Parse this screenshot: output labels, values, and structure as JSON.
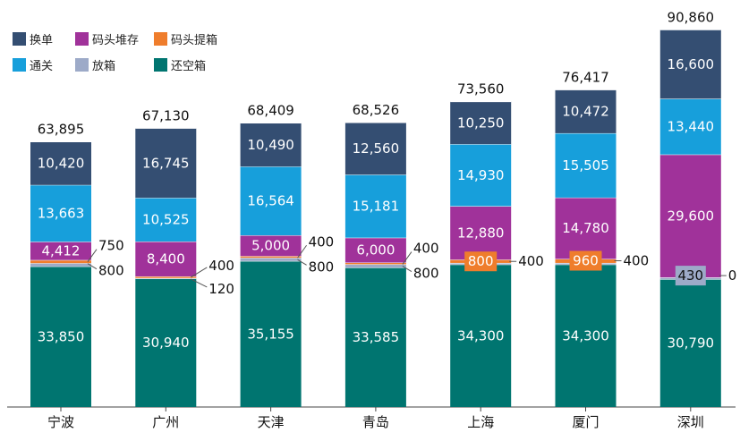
{
  "chart_data": {
    "type": "stacked-bar",
    "categories": [
      "宁波",
      "广州",
      "天津",
      "青岛",
      "上海",
      "厦门",
      "深圳"
    ],
    "series": [
      {
        "name": "还空箱",
        "color": "#007570",
        "values": [
          33850,
          30940,
          35155,
          33585,
          34300,
          34300,
          30790
        ]
      },
      {
        "name": "放箱",
        "color": "#9daac8",
        "values": [
          800,
          120,
          800,
          800,
          400,
          400,
          430
        ]
      },
      {
        "name": "码头提箱",
        "color": "#ef7d2c",
        "values": [
          750,
          400,
          400,
          400,
          800,
          960,
          0
        ]
      },
      {
        "name": "码头堆存",
        "color": "#a0329a",
        "values": [
          4412,
          8400,
          5000,
          6000,
          12880,
          14780,
          29600
        ]
      },
      {
        "name": "通关",
        "color": "#179fdb",
        "values": [
          13663,
          10525,
          16564,
          15181,
          14930,
          15505,
          13440
        ]
      },
      {
        "name": "换单",
        "color": "#344e72",
        "values": [
          10420,
          16745,
          10490,
          12560,
          10250,
          10472,
          16600
        ]
      }
    ],
    "totals": [
      "63,895",
      "67,130",
      "68,409",
      "68,526",
      "73,560",
      "76,417",
      "90,860"
    ],
    "segment_labels": [
      [
        "33,850",
        "800",
        "750",
        "4,412",
        "13,663",
        "10,420"
      ],
      [
        "30,940",
        "120",
        "400",
        "8,400",
        "10,525",
        "16,745"
      ],
      [
        "35,155",
        "800",
        "400",
        "5,000",
        "16,564",
        "10,490"
      ],
      [
        "33,585",
        "800",
        "400",
        "6,000",
        "15,181",
        "12,560"
      ],
      [
        "34,300",
        "400",
        "800",
        "12,880",
        "14,930",
        "10,250"
      ],
      [
        "34,300",
        "400",
        "960",
        "14,780",
        "15,505",
        "10,472"
      ],
      [
        "30,790",
        "430",
        "0",
        "29,600",
        "13,440",
        "16,600"
      ]
    ],
    "legend_order": [
      "换单",
      "码头堆存",
      "码头提箱",
      "通关",
      "放箱",
      "还空箱"
    ],
    "ylim": [
      0,
      92000
    ],
    "title": "",
    "xlabel": "",
    "ylabel": ""
  }
}
